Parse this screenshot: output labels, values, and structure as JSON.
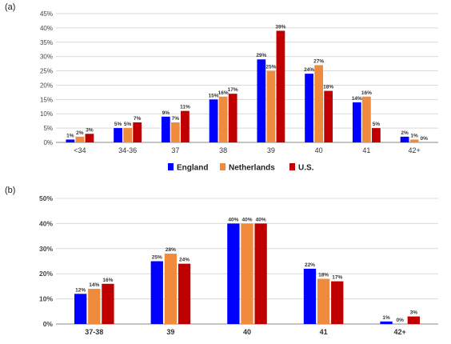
{
  "chart_data": [
    {
      "panel": "(a)",
      "type": "bar",
      "categories": [
        "<34",
        "34-36",
        "37",
        "38",
        "39",
        "40",
        "41",
        "42+"
      ],
      "series": [
        {
          "name": "England",
          "color": "#0000ff",
          "values": [
            1,
            5,
            9,
            15,
            29,
            24,
            14,
            2
          ],
          "labels": [
            "1%",
            "5%",
            "9%",
            "15%",
            "29%",
            "24%",
            "14%",
            "2%"
          ]
        },
        {
          "name": "Netherlands",
          "color": "#f08a3c",
          "values": [
            2,
            5,
            7,
            16,
            25,
            27,
            16,
            1
          ],
          "labels": [
            "2%",
            "5%",
            "7%",
            "16%",
            "25%",
            "27%",
            "16%",
            "1%"
          ]
        },
        {
          "name": "U.S.",
          "color": "#c00000",
          "values": [
            3,
            7,
            11,
            17,
            39,
            18,
            5,
            0
          ],
          "labels": [
            "3%",
            "7%",
            "11%",
            "17%",
            "39%",
            "18%",
            "5%",
            "0%"
          ]
        }
      ],
      "ylim": [
        0,
        45
      ],
      "yticks": [
        "0%",
        "5%",
        "10%",
        "15%",
        "20%",
        "25%",
        "30%",
        "35%",
        "40%",
        "45%"
      ],
      "legend_position": "bottom",
      "grid": true
    },
    {
      "panel": "(b)",
      "type": "bar",
      "categories": [
        "37-38",
        "39",
        "40",
        "41",
        "42+"
      ],
      "series": [
        {
          "name": "England",
          "color": "#0000ff",
          "values": [
            12,
            25,
            40,
            22,
            1
          ],
          "labels": [
            "12%",
            "25%",
            "40%",
            "22%",
            "1%"
          ]
        },
        {
          "name": "Netherlands",
          "color": "#f08a3c",
          "values": [
            14,
            28,
            40,
            18,
            0
          ],
          "labels": [
            "14%",
            "28%",
            "40%",
            "18%",
            "0%"
          ]
        },
        {
          "name": "U.S.",
          "color": "#c00000",
          "values": [
            16,
            24,
            40,
            17,
            3
          ],
          "labels": [
            "16%",
            "24%",
            "40%",
            "17%",
            "3%"
          ]
        }
      ],
      "ylim": [
        0,
        50
      ],
      "yticks": [
        "0%",
        "10%",
        "20%",
        "30%",
        "40%",
        "50%"
      ],
      "grid": true
    }
  ]
}
